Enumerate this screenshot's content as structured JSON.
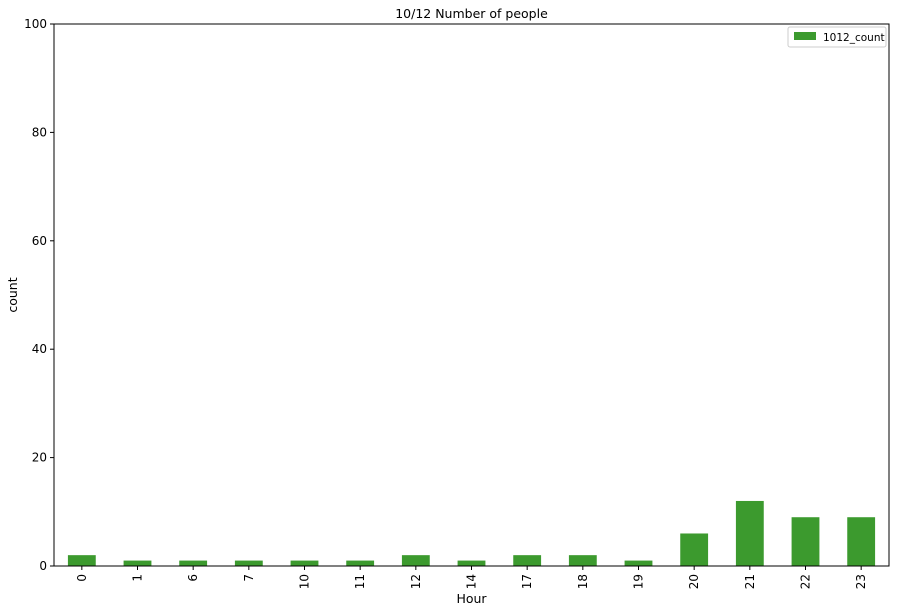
{
  "chart_data": {
    "type": "bar",
    "title": "10/12 Number of people",
    "xlabel": "Hour",
    "ylabel": "count",
    "categories": [
      "0",
      "1",
      "6",
      "7",
      "10",
      "11",
      "12",
      "14",
      "17",
      "18",
      "19",
      "20",
      "21",
      "22",
      "23"
    ],
    "series": [
      {
        "name": "1012_count",
        "values": [
          2,
          1,
          1,
          1,
          1,
          1,
          2,
          1,
          2,
          2,
          1,
          6,
          12,
          9,
          9
        ],
        "color": "#3c9a2e"
      }
    ],
    "ylim": [
      0,
      100
    ],
    "yticks": [
      0,
      20,
      40,
      60,
      80,
      100
    ],
    "grid": false,
    "legend_position": "top-right",
    "x_tick_rotation": "vertical"
  }
}
